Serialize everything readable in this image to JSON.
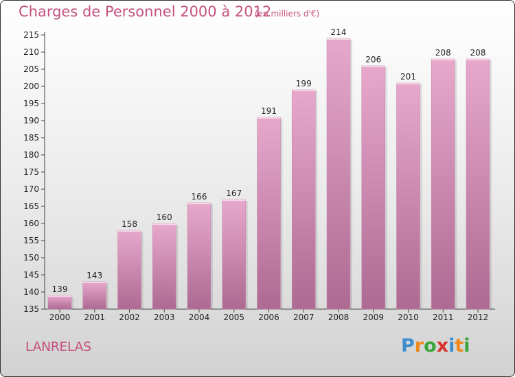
{
  "header": {
    "title": "Charges de Personnel 2000 à 2012",
    "subtitle": "(en milliers d'€)"
  },
  "footer": {
    "place": "LANRELAS",
    "logo": [
      "P",
      "r",
      "o",
      "x",
      "i",
      "t",
      "i"
    ]
  },
  "colors": {
    "bar_top": "#e8a8cc",
    "bar_bottom": "#ad6a92",
    "accent": "#c4527e"
  },
  "chart_data": {
    "type": "bar",
    "title": "Charges de Personnel 2000 à 2012",
    "subtitle": "(en milliers d'€)",
    "categories": [
      "2000",
      "2001",
      "2002",
      "2003",
      "2004",
      "2005",
      "2006",
      "2007",
      "2008",
      "2009",
      "2010",
      "2011",
      "2012"
    ],
    "values": [
      139,
      143,
      158,
      160,
      166,
      167,
      191,
      199,
      214,
      206,
      201,
      208,
      208
    ],
    "yticks": [
      135,
      140,
      145,
      150,
      155,
      160,
      165,
      170,
      175,
      180,
      185,
      190,
      195,
      200,
      205,
      210,
      215
    ],
    "ylim": [
      135,
      215
    ],
    "xlabel": "",
    "ylabel": "",
    "grid": false,
    "data_labels": true
  }
}
